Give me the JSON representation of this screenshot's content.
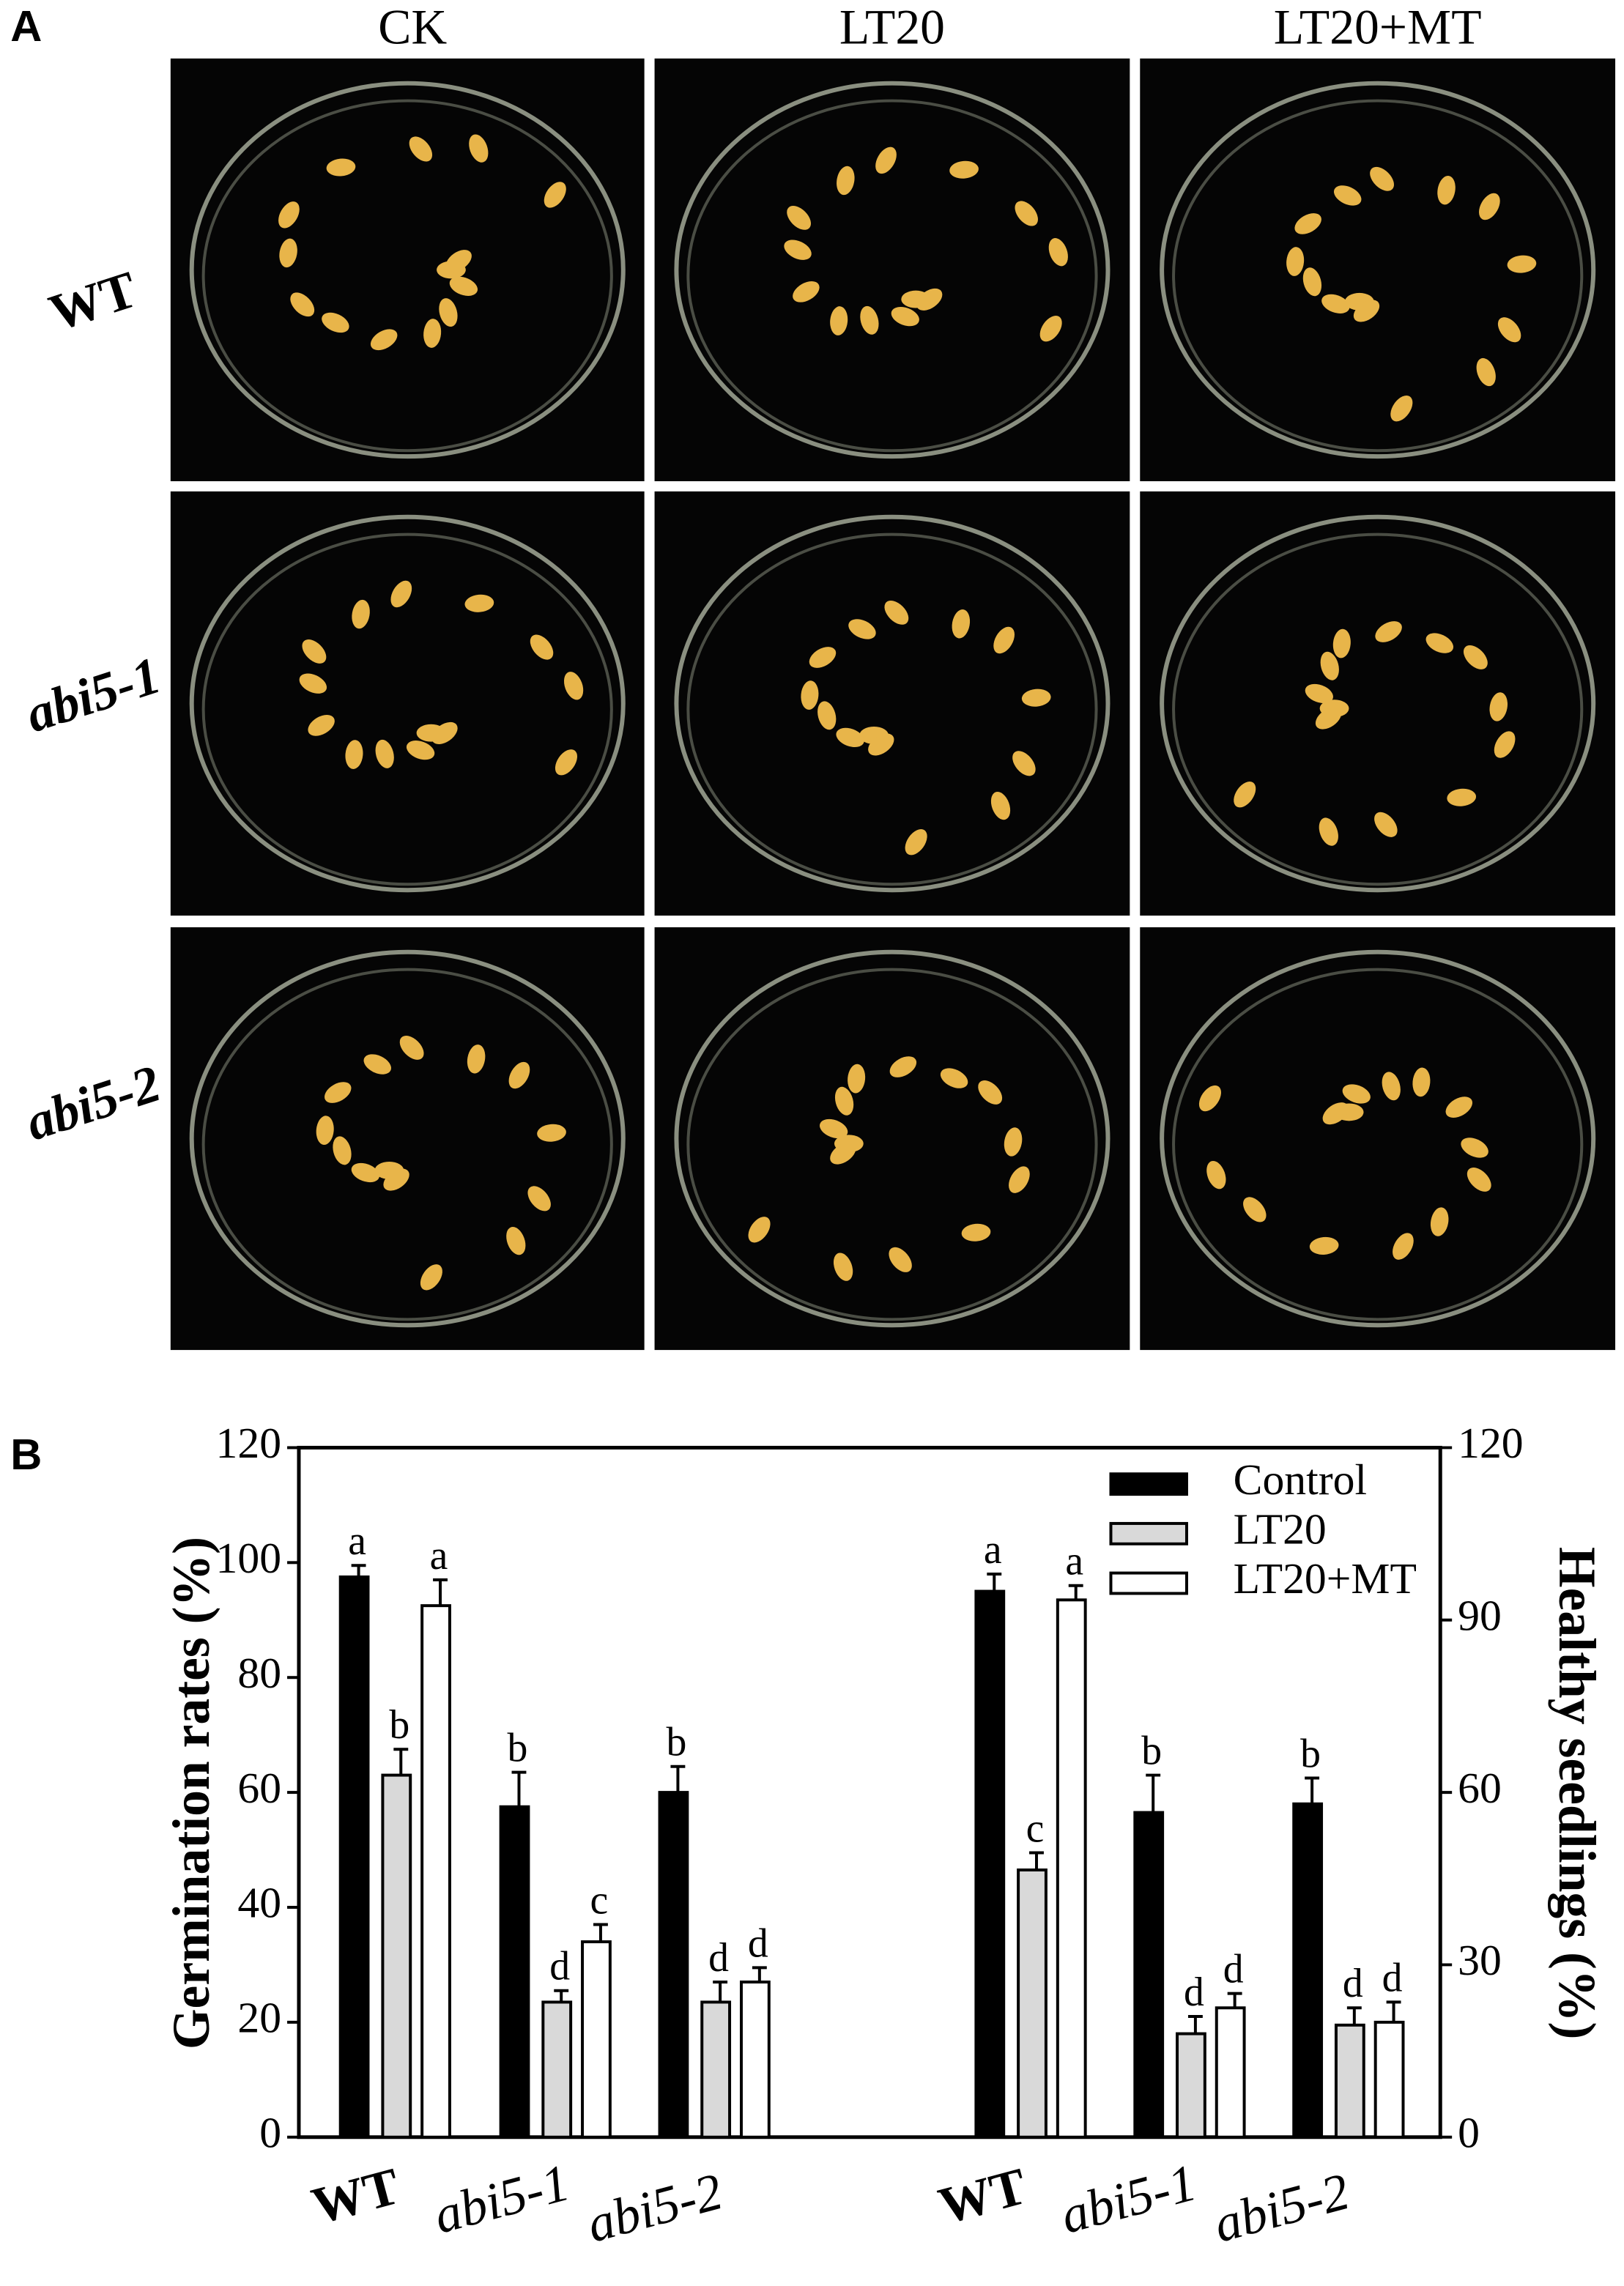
{
  "panel_a": {
    "label": "A",
    "columns": [
      "CK",
      "LT20",
      "LT20+MT"
    ],
    "rows": [
      "WT",
      "abi5-1",
      "abi5-2"
    ]
  },
  "panel_b": {
    "label": "B"
  },
  "chart_data": [
    {
      "type": "bar",
      "ylabel": "Germination rates (%)",
      "categories": [
        "WT",
        "abi5-1",
        "abi5-2"
      ],
      "ylim": [
        0,
        120
      ],
      "yticks": [
        0,
        20,
        40,
        60,
        80,
        100,
        120
      ],
      "legend": "top-right",
      "series": [
        {
          "name": "Control",
          "color": "#000000",
          "values": [
            97.5,
            57.5,
            60
          ],
          "errors": [
            2,
            6,
            4.5
          ],
          "significance": [
            "a",
            "b",
            "b"
          ]
        },
        {
          "name": "LT20",
          "color": "#d9d9d9",
          "values": [
            63,
            23.5,
            23.5
          ],
          "errors": [
            4.5,
            2,
            3.5
          ],
          "significance": [
            "b",
            "d",
            "d"
          ]
        },
        {
          "name": "LT20+MT",
          "color": "#ffffff",
          "values": [
            92.5,
            34,
            27
          ],
          "errors": [
            4.5,
            3,
            2.5
          ],
          "significance": [
            "a",
            "c",
            "d"
          ]
        }
      ]
    },
    {
      "type": "bar",
      "y2label": "Healthy seedlings (%)",
      "categories": [
        "WT",
        "abi5-1",
        "abi5-2"
      ],
      "y2lim": [
        0,
        120
      ],
      "y2ticks": [
        0,
        30,
        60,
        90,
        120
      ],
      "series": [
        {
          "axis": "y2",
          "color": "#000000",
          "values": [
            95,
            56.5,
            58
          ],
          "errors": [
            3,
            6.5,
            4.5
          ],
          "significance": [
            "a",
            "b",
            "b"
          ]
        },
        {
          "axis": "y2",
          "color": "#d9d9d9",
          "values": [
            46.5,
            18,
            19.5
          ],
          "errors": [
            3,
            3,
            3
          ],
          "significance": [
            "c",
            "d",
            "d"
          ]
        },
        {
          "axis": "y2",
          "color": "#ffffff",
          "values": [
            93.5,
            22.5,
            20
          ],
          "errors": [
            2.5,
            2.5,
            3.5
          ],
          "significance": [
            "a",
            "d",
            "d"
          ]
        }
      ]
    }
  ]
}
